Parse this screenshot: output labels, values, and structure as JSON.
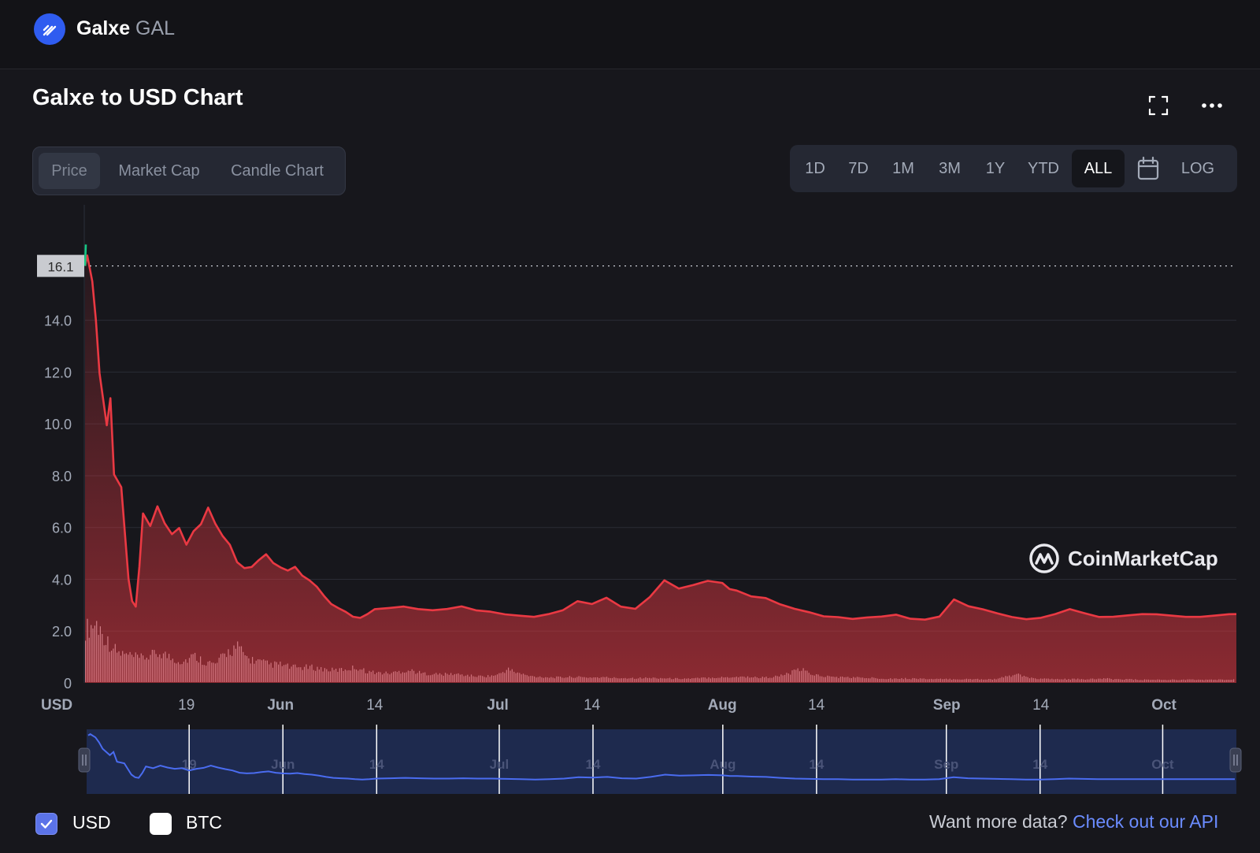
{
  "header": {
    "coin_name": "Galxe",
    "coin_symbol": "GAL",
    "logo_icon": "galxe-logo-icon"
  },
  "title": "Galxe to USD Chart",
  "toolbar": {
    "fullscreen_icon": "fullscreen-icon",
    "more_icon": "more-icon"
  },
  "type_tabs": [
    {
      "label": "Price",
      "active": true
    },
    {
      "label": "Market Cap",
      "active": false
    },
    {
      "label": "Candle Chart",
      "active": false
    }
  ],
  "ranges": [
    {
      "label": "1D",
      "active": false
    },
    {
      "label": "7D",
      "active": false
    },
    {
      "label": "1M",
      "active": false
    },
    {
      "label": "3M",
      "active": false
    },
    {
      "label": "1Y",
      "active": false
    },
    {
      "label": "YTD",
      "active": false
    },
    {
      "label": "ALL",
      "active": true
    }
  ],
  "range_calendar_icon": "calendar-icon",
  "range_log_label": "LOG",
  "watermark": "CoinMarketCap",
  "currency_label": "USD",
  "footer": {
    "usd_label": "USD",
    "usd_checked": true,
    "btc_label": "BTC",
    "btc_checked": false,
    "note": "Want more data? ",
    "link": "Check out our API"
  },
  "colors": {
    "line_down": "#ea3943",
    "line_up": "#16c784",
    "navigator_line": "#4a6cf0",
    "accent": "#5b73e8",
    "link": "#6b8cff"
  },
  "chart_data": {
    "type": "line",
    "title": "Galxe to USD Chart",
    "ylabel": "USD",
    "ylim": [
      0,
      17
    ],
    "yticks": [
      0,
      2.0,
      4.0,
      6.0,
      8.0,
      10.0,
      12.0,
      14.0
    ],
    "current_price_marker": 16.1,
    "xlim_days": [
      0,
      159
    ],
    "xticks": [
      {
        "day": 14,
        "label": "19"
      },
      {
        "day": 27,
        "label": "Jun"
      },
      {
        "day": 40,
        "label": "14"
      },
      {
        "day": 57,
        "label": "Jul"
      },
      {
        "day": 70,
        "label": "14"
      },
      {
        "day": 88,
        "label": "Aug"
      },
      {
        "day": 101,
        "label": "14"
      },
      {
        "day": 119,
        "label": "Sep"
      },
      {
        "day": 132,
        "label": "14"
      },
      {
        "day": 149,
        "label": "Oct"
      }
    ],
    "grid": true,
    "legend": "bottom-left",
    "series": [
      {
        "name": "USD",
        "x": [
          0,
          0.3,
          1,
          1.5,
          2,
          3,
          3.5,
          4,
          5,
          6,
          6.5,
          7,
          7.5,
          8,
          9,
          10,
          11,
          12,
          13,
          14,
          15,
          16,
          17,
          18,
          19,
          20,
          21,
          22,
          23,
          24,
          25,
          26,
          27,
          28,
          29,
          30,
          31,
          32,
          33,
          34,
          35,
          36,
          37,
          38,
          39,
          40,
          42,
          44,
          46,
          48,
          50,
          52,
          54,
          56,
          58,
          60,
          62,
          64,
          66,
          68,
          70,
          72,
          74,
          76,
          78,
          80,
          82,
          84,
          86,
          88,
          89,
          90,
          92,
          94,
          96,
          98,
          100,
          102,
          104,
          106,
          108,
          110,
          112,
          114,
          116,
          118,
          120,
          122,
          124,
          126,
          128,
          130,
          132,
          134,
          136,
          138,
          140,
          142,
          144,
          146,
          148,
          150,
          152,
          154,
          156,
          158,
          159
        ],
        "values": [
          16.1,
          16.5,
          15.5,
          14.0,
          12.0,
          10.0,
          11.0,
          8.0,
          7.5,
          4.0,
          3.2,
          3.0,
          4.5,
          6.5,
          6.0,
          6.8,
          6.2,
          5.8,
          6.0,
          5.3,
          5.8,
          6.1,
          6.8,
          6.2,
          5.7,
          5.3,
          4.6,
          4.4,
          4.5,
          4.8,
          5.0,
          4.6,
          4.4,
          4.3,
          4.5,
          4.2,
          4.0,
          3.7,
          3.3,
          3.0,
          2.9,
          2.8,
          2.6,
          2.5,
          2.6,
          2.8,
          2.9,
          3.0,
          2.9,
          2.8,
          2.8,
          2.9,
          2.8,
          2.8,
          2.7,
          2.6,
          2.5,
          2.6,
          2.8,
          3.2,
          3.1,
          3.3,
          2.9,
          2.8,
          3.3,
          4.0,
          3.7,
          3.8,
          3.9,
          3.8,
          3.6,
          3.6,
          3.4,
          3.3,
          3.0,
          2.8,
          2.7,
          2.6,
          2.6,
          2.5,
          2.5,
          2.5,
          2.6,
          2.5,
          2.5,
          2.6,
          3.2,
          2.9,
          2.8,
          2.7,
          2.6,
          2.5,
          2.5,
          2.6,
          2.8,
          2.7,
          2.6,
          2.6,
          2.6,
          2.6,
          2.6,
          2.6,
          2.6,
          2.6,
          2.6,
          2.6,
          2.6
        ]
      }
    ],
    "volume_relative": [
      0.9,
      1.0,
      0.7,
      0.5,
      0.45,
      0.4,
      0.45,
      0.5,
      0.4,
      0.35,
      0.45,
      0.35,
      0.3,
      0.5,
      0.6,
      0.4,
      0.35,
      0.3,
      0.3,
      0.25,
      0.25,
      0.25,
      0.22,
      0.2,
      0.22,
      0.25,
      0.18,
      0.16,
      0.15,
      0.18,
      0.2,
      0.15,
      0.14,
      0.13,
      0.14,
      0.12,
      0.1,
      0.1,
      0.12,
      0.22,
      0.15,
      0.1,
      0.09,
      0.08,
      0.08,
      0.09,
      0.08,
      0.08,
      0.08,
      0.07,
      0.07,
      0.07,
      0.07,
      0.07,
      0.06,
      0.06,
      0.06,
      0.07,
      0.08,
      0.08,
      0.09,
      0.09,
      0.08,
      0.08,
      0.1,
      0.15,
      0.22,
      0.14,
      0.1,
      0.09,
      0.08,
      0.08,
      0.07,
      0.07,
      0.06,
      0.06,
      0.06,
      0.06,
      0.05,
      0.05,
      0.05,
      0.05,
      0.05,
      0.05,
      0.05,
      0.09,
      0.14,
      0.07,
      0.06,
      0.05,
      0.05,
      0.05,
      0.05,
      0.05,
      0.06,
      0.05,
      0.05,
      0.04,
      0.04,
      0.04,
      0.04,
      0.04,
      0.04,
      0.04,
      0.04,
      0.04,
      0.04
    ]
  }
}
